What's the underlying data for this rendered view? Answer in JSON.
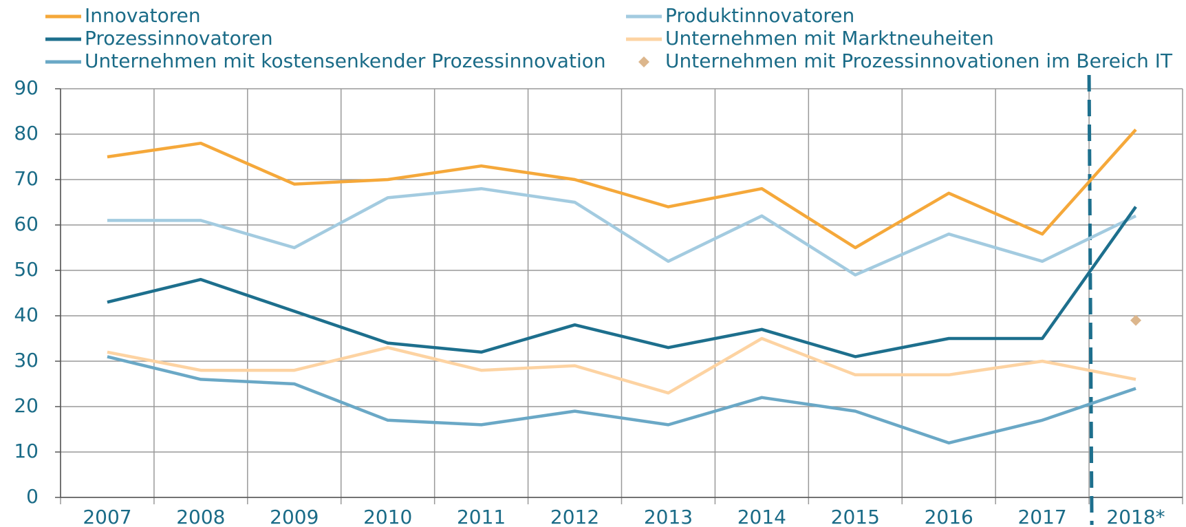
{
  "chart_data": {
    "type": "line",
    "categories": [
      "2007",
      "2008",
      "2009",
      "2010",
      "2011",
      "2012",
      "2013",
      "2014",
      "2015",
      "2016",
      "2017",
      "2018*"
    ],
    "series": [
      {
        "name": "Innovatoren",
        "color": "#f5a83a",
        "values": [
          75,
          78,
          69,
          70,
          73,
          70,
          64,
          68,
          55,
          67,
          58,
          81
        ]
      },
      {
        "name": "Produktinnovatoren",
        "color": "#a3cbe0",
        "values": [
          61,
          61,
          55,
          66,
          68,
          65,
          52,
          62,
          49,
          58,
          52,
          62
        ]
      },
      {
        "name": "Prozessinnovatoren",
        "color": "#1d6f8d",
        "values": [
          43,
          48,
          41,
          34,
          32,
          38,
          33,
          37,
          31,
          35,
          35,
          64
        ]
      },
      {
        "name": "Unternehmen mit Marktneuheiten",
        "color": "#fdd3a2",
        "values": [
          32,
          28,
          28,
          33,
          28,
          29,
          23,
          35,
          27,
          27,
          30,
          26
        ]
      },
      {
        "name": "Unternehmen mit kostensenkender Prozessinnovation",
        "color": "#6aa8c6",
        "values": [
          31,
          26,
          25,
          17,
          16,
          19,
          16,
          22,
          19,
          12,
          17,
          24
        ]
      },
      {
        "name": "Unternehmen mit Prozessinnovationen im Bereich IT",
        "color": "#dcb68c",
        "marker": "diamond",
        "values": [
          null,
          null,
          null,
          null,
          null,
          null,
          null,
          null,
          null,
          null,
          null,
          39
        ]
      }
    ],
    "ylim": [
      0,
      90
    ],
    "yticks": [
      0,
      10,
      20,
      30,
      40,
      50,
      60,
      70,
      80,
      90
    ],
    "grid": true
  }
}
